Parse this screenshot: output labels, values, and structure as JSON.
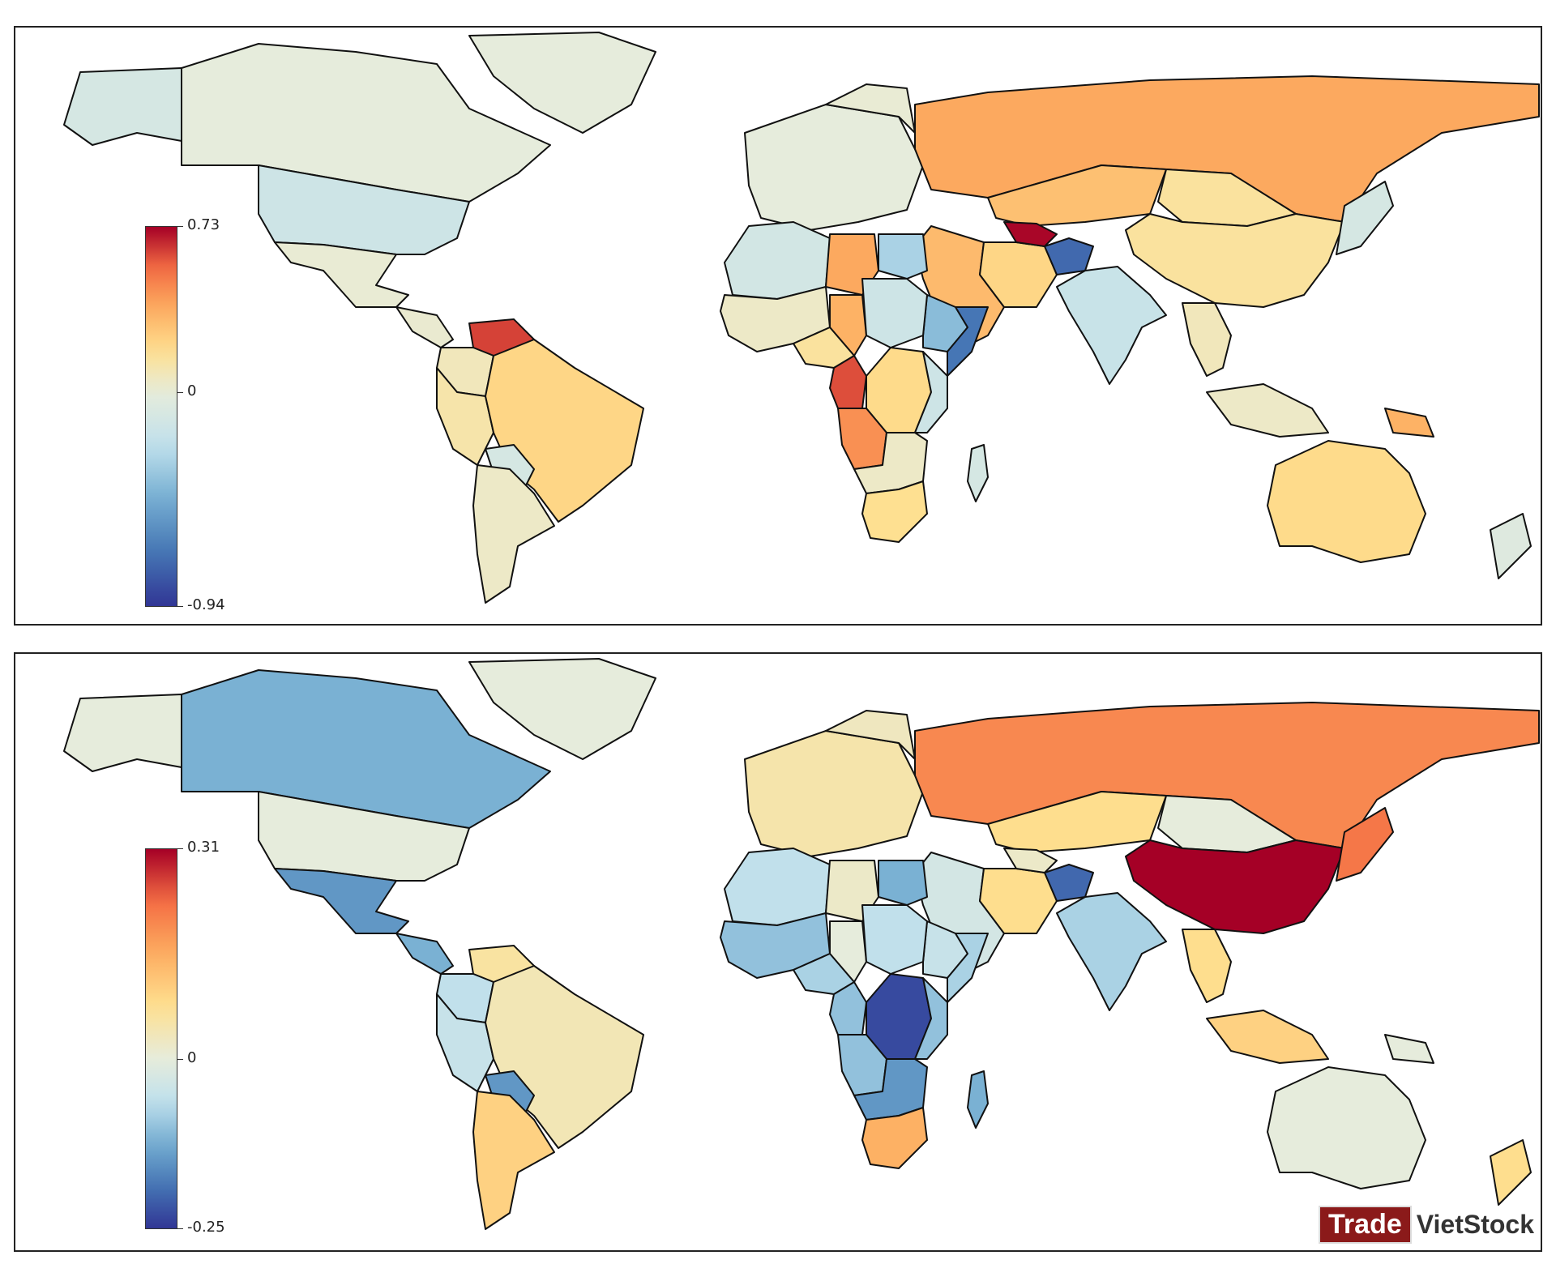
{
  "maps": [
    {
      "colorbar": {
        "max_label": "0.73",
        "mid_label": "0",
        "min_label": "-0.94",
        "max": 0.73,
        "min": -0.94
      },
      "regions": [
        {
          "name": "alaska",
          "value": -0.1
        },
        {
          "name": "canada",
          "value": 0.0
        },
        {
          "name": "greenland",
          "value": 0.0
        },
        {
          "name": "usa",
          "value": -0.15
        },
        {
          "name": "mexico",
          "value": 0.02
        },
        {
          "name": "central-america",
          "value": 0.03
        },
        {
          "name": "venezuela",
          "value": 0.62
        },
        {
          "name": "colombia",
          "value": 0.08
        },
        {
          "name": "peru",
          "value": 0.12
        },
        {
          "name": "brazil",
          "value": 0.22
        },
        {
          "name": "bolivia",
          "value": -0.1
        },
        {
          "name": "argentina",
          "value": 0.05
        },
        {
          "name": "europe-west",
          "value": 0.0
        },
        {
          "name": "scandinavia",
          "value": 0.02
        },
        {
          "name": "russia",
          "value": 0.38
        },
        {
          "name": "kazakhstan",
          "value": 0.3
        },
        {
          "name": "mongolia",
          "value": 0.15
        },
        {
          "name": "china",
          "value": 0.15
        },
        {
          "name": "india",
          "value": -0.18
        },
        {
          "name": "middle-east",
          "value": 0.32
        },
        {
          "name": "iran",
          "value": 0.22
        },
        {
          "name": "turkmenistan",
          "value": 0.72
        },
        {
          "name": "afghanistan",
          "value": -0.75
        },
        {
          "name": "north-africa-west",
          "value": -0.12
        },
        {
          "name": "libya",
          "value": 0.38
        },
        {
          "name": "egypt",
          "value": -0.3
        },
        {
          "name": "chad",
          "value": 0.35
        },
        {
          "name": "west-africa",
          "value": 0.05
        },
        {
          "name": "nigeria",
          "value": 0.15
        },
        {
          "name": "ethiopia",
          "value": -0.4
        },
        {
          "name": "sudan",
          "value": -0.15
        },
        {
          "name": "somalia",
          "value": -0.7
        },
        {
          "name": "congo-gabon",
          "value": 0.6
        },
        {
          "name": "drc",
          "value": 0.2
        },
        {
          "name": "angola",
          "value": 0.45
        },
        {
          "name": "east-africa",
          "value": -0.15
        },
        {
          "name": "southern-africa",
          "value": 0.05
        },
        {
          "name": "south-africa",
          "value": 0.18
        },
        {
          "name": "madagascar",
          "value": -0.1
        },
        {
          "name": "southeast-asia",
          "value": 0.08
        },
        {
          "name": "indonesia",
          "value": 0.05
        },
        {
          "name": "papua",
          "value": 0.35
        },
        {
          "name": "australia",
          "value": 0.2
        },
        {
          "name": "japan",
          "value": -0.1
        },
        {
          "name": "new-zealand",
          "value": -0.05
        }
      ]
    },
    {
      "colorbar": {
        "max_label": "0.31",
        "mid_label": "0",
        "min_label": "-0.25",
        "max": 0.31,
        "min": -0.25
      },
      "regions": [
        {
          "name": "alaska",
          "value": 0.0
        },
        {
          "name": "canada",
          "value": -0.12
        },
        {
          "name": "greenland",
          "value": 0.0
        },
        {
          "name": "usa",
          "value": 0.0
        },
        {
          "name": "mexico",
          "value": -0.15
        },
        {
          "name": "central-america",
          "value": -0.12
        },
        {
          "name": "venezuela",
          "value": 0.06
        },
        {
          "name": "colombia",
          "value": -0.06
        },
        {
          "name": "peru",
          "value": -0.05
        },
        {
          "name": "brazil",
          "value": 0.04
        },
        {
          "name": "bolivia",
          "value": -0.15
        },
        {
          "name": "argentina",
          "value": 0.1
        },
        {
          "name": "europe-west",
          "value": 0.05
        },
        {
          "name": "scandinavia",
          "value": 0.03
        },
        {
          "name": "russia",
          "value": 0.2
        },
        {
          "name": "kazakhstan",
          "value": 0.08
        },
        {
          "name": "mongolia",
          "value": 0.0
        },
        {
          "name": "china",
          "value": 0.31
        },
        {
          "name": "india",
          "value": -0.08
        },
        {
          "name": "middle-east",
          "value": -0.03
        },
        {
          "name": "iran",
          "value": 0.08
        },
        {
          "name": "turkmenistan",
          "value": 0.02
        },
        {
          "name": "afghanistan",
          "value": -0.2
        },
        {
          "name": "north-africa-west",
          "value": -0.06
        },
        {
          "name": "libya",
          "value": 0.02
        },
        {
          "name": "egypt",
          "value": -0.12
        },
        {
          "name": "chad",
          "value": 0.0
        },
        {
          "name": "west-africa",
          "value": -0.1
        },
        {
          "name": "nigeria",
          "value": -0.08
        },
        {
          "name": "ethiopia",
          "value": -0.05
        },
        {
          "name": "sudan",
          "value": -0.06
        },
        {
          "name": "somalia",
          "value": -0.08
        },
        {
          "name": "congo-gabon",
          "value": -0.1
        },
        {
          "name": "drc",
          "value": -0.23
        },
        {
          "name": "angola",
          "value": -0.1
        },
        {
          "name": "east-africa",
          "value": -0.1
        },
        {
          "name": "southern-africa",
          "value": -0.15
        },
        {
          "name": "south-africa",
          "value": 0.15
        },
        {
          "name": "madagascar",
          "value": -0.12
        },
        {
          "name": "southeast-asia",
          "value": 0.08
        },
        {
          "name": "indonesia",
          "value": 0.1
        },
        {
          "name": "papua",
          "value": 0.0
        },
        {
          "name": "australia",
          "value": 0.0
        },
        {
          "name": "japan",
          "value": 0.22
        },
        {
          "name": "new-zealand",
          "value": 0.08
        }
      ]
    }
  ],
  "watermark": {
    "part1": "Trade",
    "part2": "VietStock"
  }
}
